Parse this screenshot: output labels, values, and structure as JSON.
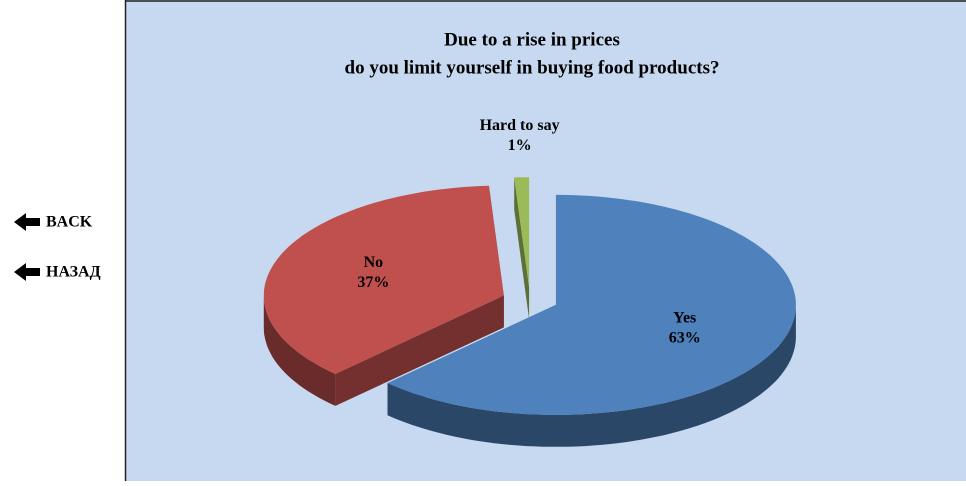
{
  "nav": [
    "BACK",
    "НАЗАД"
  ],
  "chart_data": {
    "type": "pie",
    "title": [
      "Due to a rise in prices",
      "do you limit yourself in buying food products?"
    ],
    "categories": [
      "Yes",
      "No",
      "Hard to say"
    ],
    "values": [
      63,
      37,
      1
    ],
    "value_labels": [
      "63%",
      "37%",
      "1%"
    ],
    "colors": [
      "#4f81bd",
      "#c0504d",
      "#9bbb59"
    ]
  }
}
